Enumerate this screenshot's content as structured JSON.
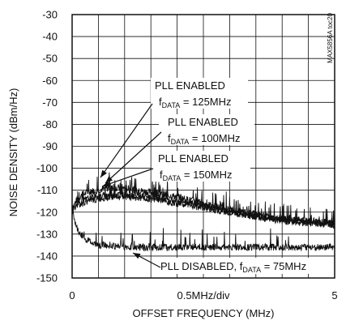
{
  "chart_data": {
    "type": "line",
    "xlabel": "OFFSET FREQUENCY (MHz)",
    "ylabel": "NOISE DENSITY (dBm/Hz)",
    "x_axis_note": "0.5MHz/div",
    "xlim": [
      0,
      5
    ],
    "ylim": [
      -150,
      -30
    ],
    "x_ticks": [
      "0",
      "5"
    ],
    "y_ticks": [
      "-30",
      "-40",
      "-50",
      "-60",
      "-70",
      "-80",
      "-90",
      "-100",
      "-110",
      "-120",
      "-130",
      "-140",
      "-150"
    ],
    "grid": true,
    "figure_code": "MAX5856A toc20",
    "annotations": [
      {
        "line1": "PLL ENABLED",
        "sub_prefix": "f",
        "sub": "DATA",
        "suffix": " = 125MHz"
      },
      {
        "line1": "PLL ENABLED",
        "sub_prefix": "f",
        "sub": "DATA",
        "suffix": " = 100MHz"
      },
      {
        "line1": "PLL ENABLED",
        "sub_prefix": "f",
        "sub": "DATA",
        "suffix": " = 150MHz"
      },
      {
        "line1": "PLL DISABLED, ",
        "sub_prefix": "f",
        "sub": "DATA",
        "suffix": " = 75MHz"
      }
    ],
    "series": [
      {
        "x": [
          0.0,
          0.05,
          0.1,
          0.2,
          0.3,
          0.5,
          0.7,
          1.0,
          1.5,
          2.0,
          2.5,
          3.0,
          3.5,
          4.0,
          4.5,
          5.0
        ],
        "values": [
          -120,
          -116,
          -114,
          -112,
          -111,
          -110,
          -109,
          -109,
          -111,
          -113,
          -116,
          -119,
          -121,
          -123,
          -124,
          -125
        ]
      },
      {
        "x": [
          0.0,
          0.05,
          0.1,
          0.2,
          0.3,
          0.5,
          0.7,
          1.0,
          1.5,
          2.0,
          2.5,
          3.0,
          3.5,
          4.0,
          4.5,
          5.0
        ],
        "values": [
          -118,
          -117,
          -116,
          -115,
          -114,
          -113,
          -112,
          -112,
          -113,
          -115,
          -117,
          -120,
          -122,
          -123,
          -124,
          -125
        ]
      },
      {
        "x": [
          0.0,
          0.05,
          0.1,
          0.2,
          0.3,
          0.5,
          0.7,
          1.0,
          1.5,
          2.0,
          2.5,
          3.0,
          3.5,
          4.0,
          4.5,
          5.0
        ],
        "values": [
          -119,
          -118,
          -117,
          -116,
          -115,
          -114,
          -113,
          -113,
          -114,
          -116,
          -118,
          -120,
          -122,
          -124,
          -125,
          -126
        ]
      },
      {
        "x": [
          0.0,
          0.05,
          0.1,
          0.2,
          0.3,
          0.4,
          0.5,
          0.7,
          1.0,
          1.5,
          2.0,
          2.5,
          3.0,
          3.5,
          4.0,
          4.5,
          5.0
        ],
        "values": [
          -118,
          -124,
          -128,
          -131,
          -133,
          -134,
          -135,
          -135,
          -136,
          -136,
          -136,
          -136,
          -136,
          -136,
          -136,
          -136,
          -136
        ]
      }
    ]
  }
}
